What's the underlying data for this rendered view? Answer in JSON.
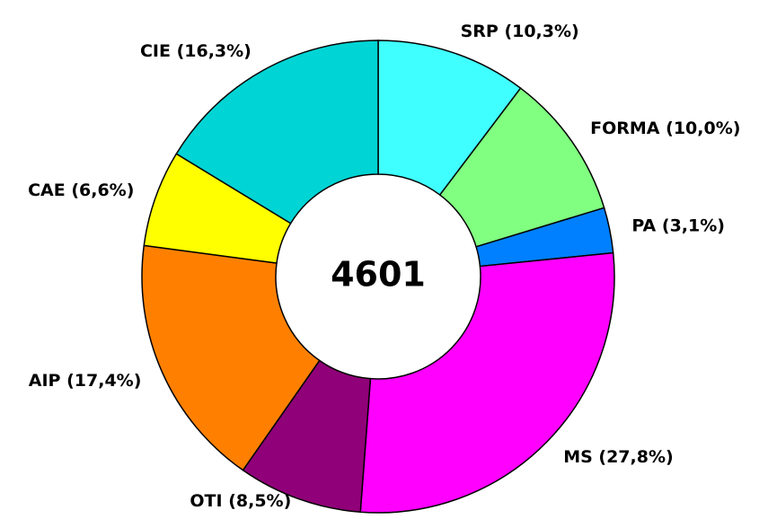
{
  "chart_data": {
    "type": "donut",
    "categories": [
      "SRP",
      "FORMA",
      "PA",
      "MS",
      "OTI",
      "AIP",
      "CAE",
      "CIE"
    ],
    "values": [
      10.3,
      10.0,
      3.1,
      27.8,
      8.5,
      17.4,
      6.6,
      16.3
    ],
    "value_labels": [
      "(10,3%)",
      "(10,0%)",
      "(3,1%)",
      "(27,8%)",
      "(8,5%)",
      "(17,4%)",
      "(6,6%)",
      "(16,3%)"
    ],
    "colors": [
      "#40ffff",
      "#80ff80",
      "#0080ff",
      "#ff00ff",
      "#900078",
      "#ff8000",
      "#ffff00",
      "#00d4d4"
    ],
    "total": 4601
  }
}
